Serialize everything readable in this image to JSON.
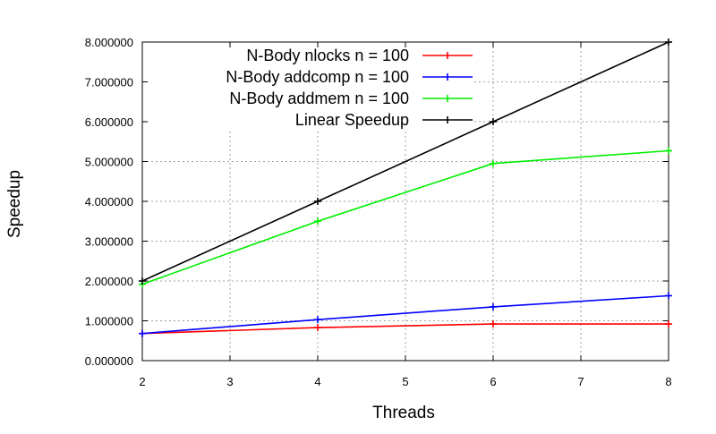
{
  "chart_data": {
    "type": "line",
    "xlabel": "Threads",
    "ylabel": "Speedup",
    "xlim": [
      2,
      8
    ],
    "ylim": [
      0,
      8
    ],
    "x_ticks": [
      "2",
      "3",
      "4",
      "5",
      "6",
      "7",
      "8"
    ],
    "y_ticks": [
      "0.000000",
      "1.000000",
      "2.000000",
      "3.000000",
      "4.000000",
      "5.000000",
      "6.000000",
      "7.000000",
      "8.000000"
    ],
    "grid": true,
    "legend_position": "top-right",
    "series": [
      {
        "name": "N-Body nlocks n = 100",
        "color": "#ff0000",
        "x": [
          2,
          4,
          6,
          8
        ],
        "y": [
          0.68,
          0.83,
          0.92,
          0.92
        ]
      },
      {
        "name": "N-Body addcomp n = 100",
        "color": "#0000ff",
        "x": [
          2,
          4,
          6,
          8
        ],
        "y": [
          0.68,
          1.03,
          1.35,
          1.63
        ]
      },
      {
        "name": "N-Body addmem n = 100",
        "color": "#00ee00",
        "x": [
          2,
          4,
          6,
          8
        ],
        "y": [
          1.92,
          3.5,
          4.95,
          5.27
        ]
      },
      {
        "name": "Linear Speedup",
        "color": "#000000",
        "x": [
          2,
          4,
          6,
          8
        ],
        "y": [
          2.0,
          4.0,
          6.0,
          8.0
        ]
      }
    ]
  }
}
